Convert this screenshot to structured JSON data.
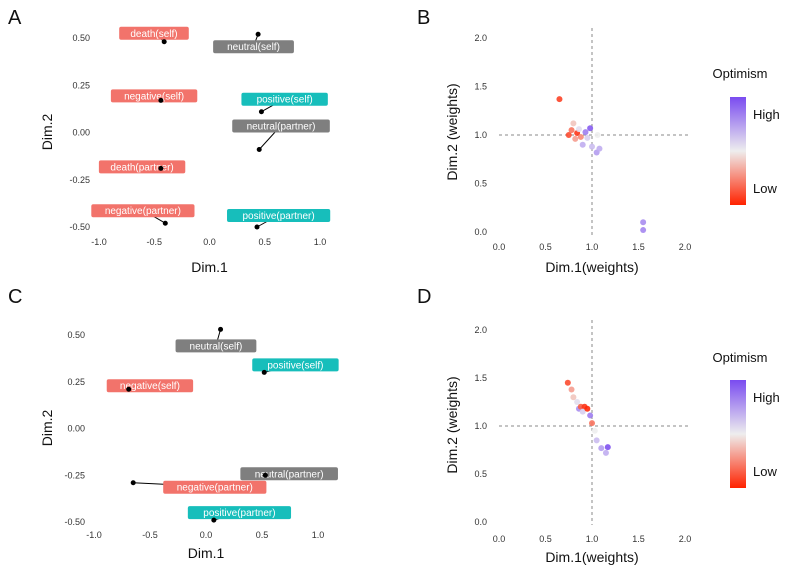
{
  "colors": {
    "death": "#f2736b",
    "negative": "#f2736b",
    "neutral": "#7f7f7f",
    "positive": "#17bebb",
    "low": "#ff2200",
    "high": "#7a4cf0",
    "mid": "#eeeeee"
  },
  "chart_data": [
    {
      "panel": "A",
      "type": "scatter",
      "xlabel": "Dim.1",
      "ylabel": "Dim.2",
      "xlim": [
        -1.0,
        1.0
      ],
      "ylim": [
        -0.5,
        0.5
      ],
      "xticks": [
        "-1.0",
        "-0.5",
        "0.0",
        "0.5",
        "1.0"
      ],
      "yticks": [
        "0.50",
        "0.25",
        "0.00",
        "-0.25",
        "-0.50"
      ],
      "points": [
        {
          "label": "death(self)",
          "x": -0.41,
          "y": 0.48,
          "group": "death"
        },
        {
          "label": "neutral(self)",
          "x": 0.44,
          "y": 0.52,
          "group": "neutral"
        },
        {
          "label": "negative(self)",
          "x": -0.44,
          "y": 0.17,
          "group": "negative"
        },
        {
          "label": "positive(self)",
          "x": 0.47,
          "y": 0.11,
          "group": "positive"
        },
        {
          "label": "neutral(partner)",
          "x": 0.45,
          "y": -0.09,
          "group": "neutral"
        },
        {
          "label": "death(partner)",
          "x": -0.44,
          "y": -0.19,
          "group": "death"
        },
        {
          "label": "negative(partner)",
          "x": -0.4,
          "y": -0.48,
          "group": "negative"
        },
        {
          "label": "positive(partner)",
          "x": 0.43,
          "y": -0.5,
          "group": "positive"
        }
      ]
    },
    {
      "panel": "B",
      "type": "scatter",
      "xlabel": "Dim.1(weights)",
      "ylabel": "Dim.2 (weights)",
      "xlim": [
        0.0,
        2.0
      ],
      "ylim": [
        0.0,
        2.0
      ],
      "xticks": [
        "0.0",
        "0.5",
        "1.0",
        "1.5",
        "2.0"
      ],
      "yticks": [
        "2.0",
        "1.5",
        "1.0",
        "0.5",
        "0.0"
      ],
      "reference_lines": {
        "x": 1.0,
        "y": 1.0
      },
      "legend": {
        "title": "Optimism",
        "high": "High",
        "low": "Low"
      },
      "points": [
        {
          "x": 0.65,
          "y": 1.37,
          "optimism": 0.08
        },
        {
          "x": 0.75,
          "y": 1.0,
          "optimism": 0.1
        },
        {
          "x": 0.78,
          "y": 1.05,
          "optimism": 0.2
        },
        {
          "x": 0.8,
          "y": 1.12,
          "optimism": 0.4
        },
        {
          "x": 0.82,
          "y": 0.96,
          "optimism": 0.3
        },
        {
          "x": 0.84,
          "y": 1.02,
          "optimism": 0.05
        },
        {
          "x": 0.86,
          "y": 1.06,
          "optimism": 0.55
        },
        {
          "x": 0.88,
          "y": 0.98,
          "optimism": 0.25
        },
        {
          "x": 0.9,
          "y": 0.9,
          "optimism": 0.7
        },
        {
          "x": 0.93,
          "y": 1.03,
          "optimism": 0.85
        },
        {
          "x": 0.95,
          "y": 0.97,
          "optimism": 0.6
        },
        {
          "x": 0.98,
          "y": 1.07,
          "optimism": 0.95
        },
        {
          "x": 1.0,
          "y": 0.88,
          "optimism": 0.65
        },
        {
          "x": 1.05,
          "y": 0.82,
          "optimism": 0.75
        },
        {
          "x": 1.06,
          "y": 1.0,
          "optimism": 0.5
        },
        {
          "x": 1.08,
          "y": 0.86,
          "optimism": 0.7
        },
        {
          "x": 1.55,
          "y": 0.1,
          "optimism": 0.8
        },
        {
          "x": 1.55,
          "y": 0.02,
          "optimism": 0.82
        }
      ]
    },
    {
      "panel": "C",
      "type": "scatter",
      "xlabel": "Dim.1",
      "ylabel": "Dim.2",
      "xlim": [
        -1.0,
        1.0
      ],
      "ylim": [
        -0.5,
        0.5
      ],
      "xticks": [
        "-1.0",
        "-0.5",
        "0.0",
        "0.5",
        "1.0"
      ],
      "yticks": [
        "0.50",
        "0.25",
        "0.00",
        "-0.25",
        "-0.50"
      ],
      "points": [
        {
          "label": "neutral(self)",
          "x": 0.13,
          "y": 0.53,
          "group": "neutral"
        },
        {
          "label": "positive(self)",
          "x": 0.52,
          "y": 0.3,
          "group": "positive"
        },
        {
          "label": "negative(self)",
          "x": -0.69,
          "y": 0.21,
          "group": "negative"
        },
        {
          "label": "neutral(partner)",
          "x": 0.53,
          "y": -0.25,
          "group": "neutral"
        },
        {
          "label": "negative(partner)",
          "x": -0.65,
          "y": -0.29,
          "group": "negative"
        },
        {
          "label": "positive(partner)",
          "x": 0.07,
          "y": -0.49,
          "group": "positive"
        }
      ]
    },
    {
      "panel": "D",
      "type": "scatter",
      "xlabel": "Dim.1(weights)",
      "ylabel": "Dim.2 (weights)",
      "xlim": [
        0.0,
        2.0
      ],
      "ylim": [
        0.0,
        2.0
      ],
      "xticks": [
        "0.0",
        "0.5",
        "1.0",
        "1.5",
        "2.0"
      ],
      "yticks": [
        "2.0",
        "1.5",
        "1.0",
        "0.5",
        "0.0"
      ],
      "reference_lines": {
        "x": 1.0,
        "y": 1.0
      },
      "legend": {
        "title": "Optimism",
        "high": "High",
        "low": "Low"
      },
      "points": [
        {
          "x": 0.74,
          "y": 1.45,
          "optimism": 0.1
        },
        {
          "x": 0.78,
          "y": 1.38,
          "optimism": 0.3
        },
        {
          "x": 0.8,
          "y": 1.3,
          "optimism": 0.4
        },
        {
          "x": 0.84,
          "y": 1.25,
          "optimism": 0.55
        },
        {
          "x": 0.86,
          "y": 1.18,
          "optimism": 0.8
        },
        {
          "x": 0.88,
          "y": 1.2,
          "optimism": 0.15
        },
        {
          "x": 0.92,
          "y": 1.2,
          "optimism": 0.05
        },
        {
          "x": 0.9,
          "y": 1.15,
          "optimism": 0.6
        },
        {
          "x": 0.95,
          "y": 1.18,
          "optimism": 0.02
        },
        {
          "x": 0.98,
          "y": 1.11,
          "optimism": 0.85
        },
        {
          "x": 1.0,
          "y": 1.03,
          "optimism": 0.2
        },
        {
          "x": 1.03,
          "y": 0.95,
          "optimism": 0.5
        },
        {
          "x": 1.05,
          "y": 0.85,
          "optimism": 0.65
        },
        {
          "x": 1.1,
          "y": 0.77,
          "optimism": 0.75
        },
        {
          "x": 1.15,
          "y": 0.72,
          "optimism": 0.7
        },
        {
          "x": 1.17,
          "y": 0.78,
          "optimism": 0.98
        }
      ]
    }
  ]
}
